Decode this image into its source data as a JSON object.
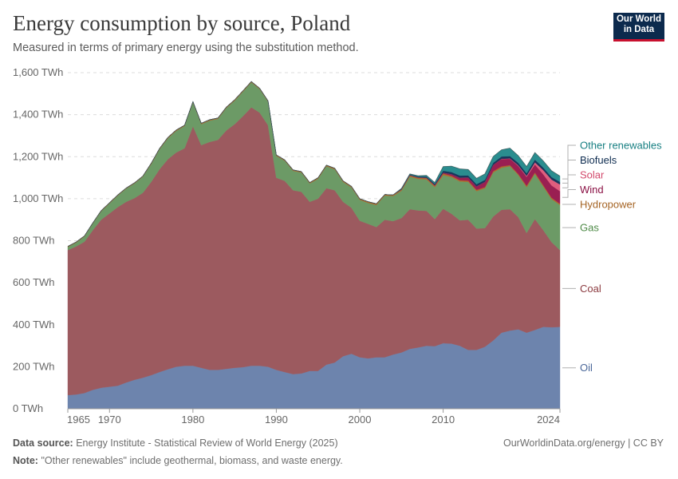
{
  "header": {
    "title": "Energy consumption by source, Poland",
    "subtitle": "Measured in terms of primary energy using the substitution method.",
    "logo_line1": "Our World",
    "logo_line2": "in Data"
  },
  "footer": {
    "source_label": "Data source:",
    "source_text": "Energy Institute - Statistical Review of World Energy (2025)",
    "note_label": "Note:",
    "note_text": "\"Other renewables\" include geothermal, biomass, and waste energy.",
    "attribution": "OurWorldinData.org/energy | CC BY"
  },
  "chart_data": {
    "type": "area",
    "stacked": true,
    "title": "Energy consumption by source, Poland",
    "ylabel": "",
    "xlabel": "",
    "ylim": [
      0,
      1600
    ],
    "y_ticks": [
      0,
      200,
      400,
      600,
      800,
      1000,
      1200,
      1400,
      1600
    ],
    "y_tick_labels": [
      "0 TWh",
      "200 TWh",
      "400 TWh",
      "600 TWh",
      "800 TWh",
      "1,000 TWh",
      "1,200 TWh",
      "1,400 TWh",
      "1,600 TWh"
    ],
    "x_ticks": [
      1965,
      1970,
      1980,
      1990,
      2000,
      2010,
      2024
    ],
    "x_tick_labels": [
      "1965",
      "1970",
      "1980",
      "1990",
      "2000",
      "2010",
      "2024"
    ],
    "xlim": [
      1965,
      2024
    ],
    "grid": true,
    "legend": "right",
    "x": [
      1965,
      1966,
      1967,
      1968,
      1969,
      1970,
      1971,
      1972,
      1973,
      1974,
      1975,
      1976,
      1977,
      1978,
      1979,
      1980,
      1981,
      1982,
      1983,
      1984,
      1985,
      1986,
      1987,
      1988,
      1989,
      1990,
      1991,
      1992,
      1993,
      1994,
      1995,
      1996,
      1997,
      1998,
      1999,
      2000,
      2001,
      2002,
      2003,
      2004,
      2005,
      2006,
      2007,
      2008,
      2009,
      2010,
      2011,
      2012,
      2013,
      2014,
      2015,
      2016,
      2017,
      2018,
      2019,
      2020,
      2021,
      2022,
      2023,
      2024
    ],
    "series": [
      {
        "name": "Oil",
        "color": "#6d84ad",
        "values": [
          65,
          68,
          75,
          90,
          100,
          105,
          110,
          125,
          138,
          148,
          160,
          175,
          188,
          200,
          205,
          205,
          195,
          185,
          185,
          190,
          195,
          198,
          205,
          205,
          200,
          185,
          175,
          165,
          168,
          180,
          180,
          210,
          220,
          250,
          262,
          245,
          240,
          245,
          245,
          258,
          268,
          285,
          292,
          300,
          298,
          312,
          310,
          300,
          280,
          280,
          295,
          325,
          362,
          372,
          378,
          362,
          375,
          390,
          388,
          390
        ]
      },
      {
        "name": "Coal",
        "color": "#9c5a5f",
        "values": [
          690,
          705,
          720,
          760,
          800,
          825,
          850,
          860,
          865,
          880,
          920,
          965,
          1000,
          1020,
          1035,
          1140,
          1060,
          1085,
          1095,
          1135,
          1160,
          1195,
          1230,
          1205,
          1150,
          915,
          910,
          875,
          865,
          805,
          820,
          840,
          820,
          735,
          695,
          650,
          640,
          620,
          655,
          635,
          640,
          665,
          652,
          642,
          605,
          640,
          618,
          597,
          620,
          578,
          565,
          590,
          585,
          578,
          535,
          475,
          528,
          460,
          405,
          365
        ]
      },
      {
        "name": "Gas",
        "color": "#6c9a66",
        "values": [
          15,
          18,
          25,
          32,
          40,
          48,
          55,
          63,
          70,
          77,
          85,
          95,
          100,
          103,
          106,
          113,
          100,
          102,
          100,
          107,
          112,
          117,
          119,
          112,
          112,
          104,
          96,
          93,
          92,
          88,
          95,
          105,
          100,
          95,
          97,
          100,
          100,
          105,
          115,
          120,
          130,
          155,
          150,
          150,
          152,
          160,
          175,
          185,
          180,
          178,
          190,
          210,
          200,
          205,
          200,
          218,
          215,
          208,
          205,
          215
        ]
      },
      {
        "name": "Hydropower",
        "color": "#b06a2c",
        "values": [
          3,
          3,
          3,
          3,
          3,
          3,
          3,
          3,
          3,
          3,
          4,
          4,
          4,
          4,
          4,
          4,
          4,
          4,
          4,
          4,
          4,
          4,
          4,
          4,
          4,
          4,
          4,
          4,
          4,
          4,
          5,
          5,
          5,
          5,
          5,
          5,
          6,
          6,
          5,
          5,
          6,
          6,
          6,
          6,
          6,
          8,
          6,
          6,
          6,
          6,
          5,
          6,
          7,
          5,
          5,
          7,
          7,
          6,
          7,
          6
        ]
      },
      {
        "name": "Wind",
        "color": "#9a1f52",
        "values": [
          0,
          0,
          0,
          0,
          0,
          0,
          0,
          0,
          0,
          0,
          0,
          0,
          0,
          0,
          0,
          0,
          0,
          0,
          0,
          0,
          0,
          0,
          0,
          0,
          0,
          0,
          0,
          0,
          0,
          0,
          0,
          0,
          0,
          0,
          0,
          0,
          0,
          0,
          0,
          0,
          0,
          1,
          1,
          2,
          3,
          4,
          8,
          12,
          15,
          17,
          25,
          30,
          35,
          30,
          38,
          42,
          38,
          52,
          58,
          60
        ]
      },
      {
        "name": "Solar",
        "color": "#e05e7e",
        "values": [
          0,
          0,
          0,
          0,
          0,
          0,
          0,
          0,
          0,
          0,
          0,
          0,
          0,
          0,
          0,
          0,
          0,
          0,
          0,
          0,
          0,
          0,
          0,
          0,
          0,
          0,
          0,
          0,
          0,
          0,
          0,
          0,
          0,
          0,
          0,
          0,
          0,
          0,
          0,
          0,
          0,
          0,
          0,
          0,
          0,
          0,
          0,
          0,
          0,
          0,
          0,
          0,
          1,
          2,
          3,
          5,
          10,
          20,
          28,
          32
        ]
      },
      {
        "name": "Biofuels",
        "color": "#18375c",
        "values": [
          0,
          0,
          0,
          0,
          0,
          0,
          0,
          0,
          0,
          0,
          0,
          0,
          0,
          0,
          0,
          0,
          0,
          0,
          0,
          0,
          0,
          0,
          0,
          0,
          0,
          0,
          0,
          0,
          0,
          0,
          0,
          0,
          0,
          0,
          0,
          0,
          0,
          0,
          0,
          0,
          3,
          3,
          4,
          5,
          6,
          9,
          10,
          10,
          10,
          10,
          10,
          10,
          11,
          11,
          12,
          12,
          13,
          12,
          12,
          12
        ]
      },
      {
        "name": "Other renewables",
        "color": "#2a8d8f",
        "values": [
          0,
          0,
          0,
          0,
          0,
          0,
          0,
          0,
          0,
          0,
          0,
          0,
          0,
          0,
          0,
          0,
          0,
          0,
          0,
          0,
          0,
          0,
          0,
          0,
          0,
          0,
          0,
          0,
          0,
          0,
          0,
          0,
          0,
          0,
          0,
          0,
          0,
          0,
          0,
          0,
          2,
          3,
          4,
          6,
          7,
          20,
          28,
          32,
          28,
          28,
          28,
          30,
          32,
          38,
          34,
          32,
          34,
          32,
          30,
          28
        ]
      }
    ]
  }
}
